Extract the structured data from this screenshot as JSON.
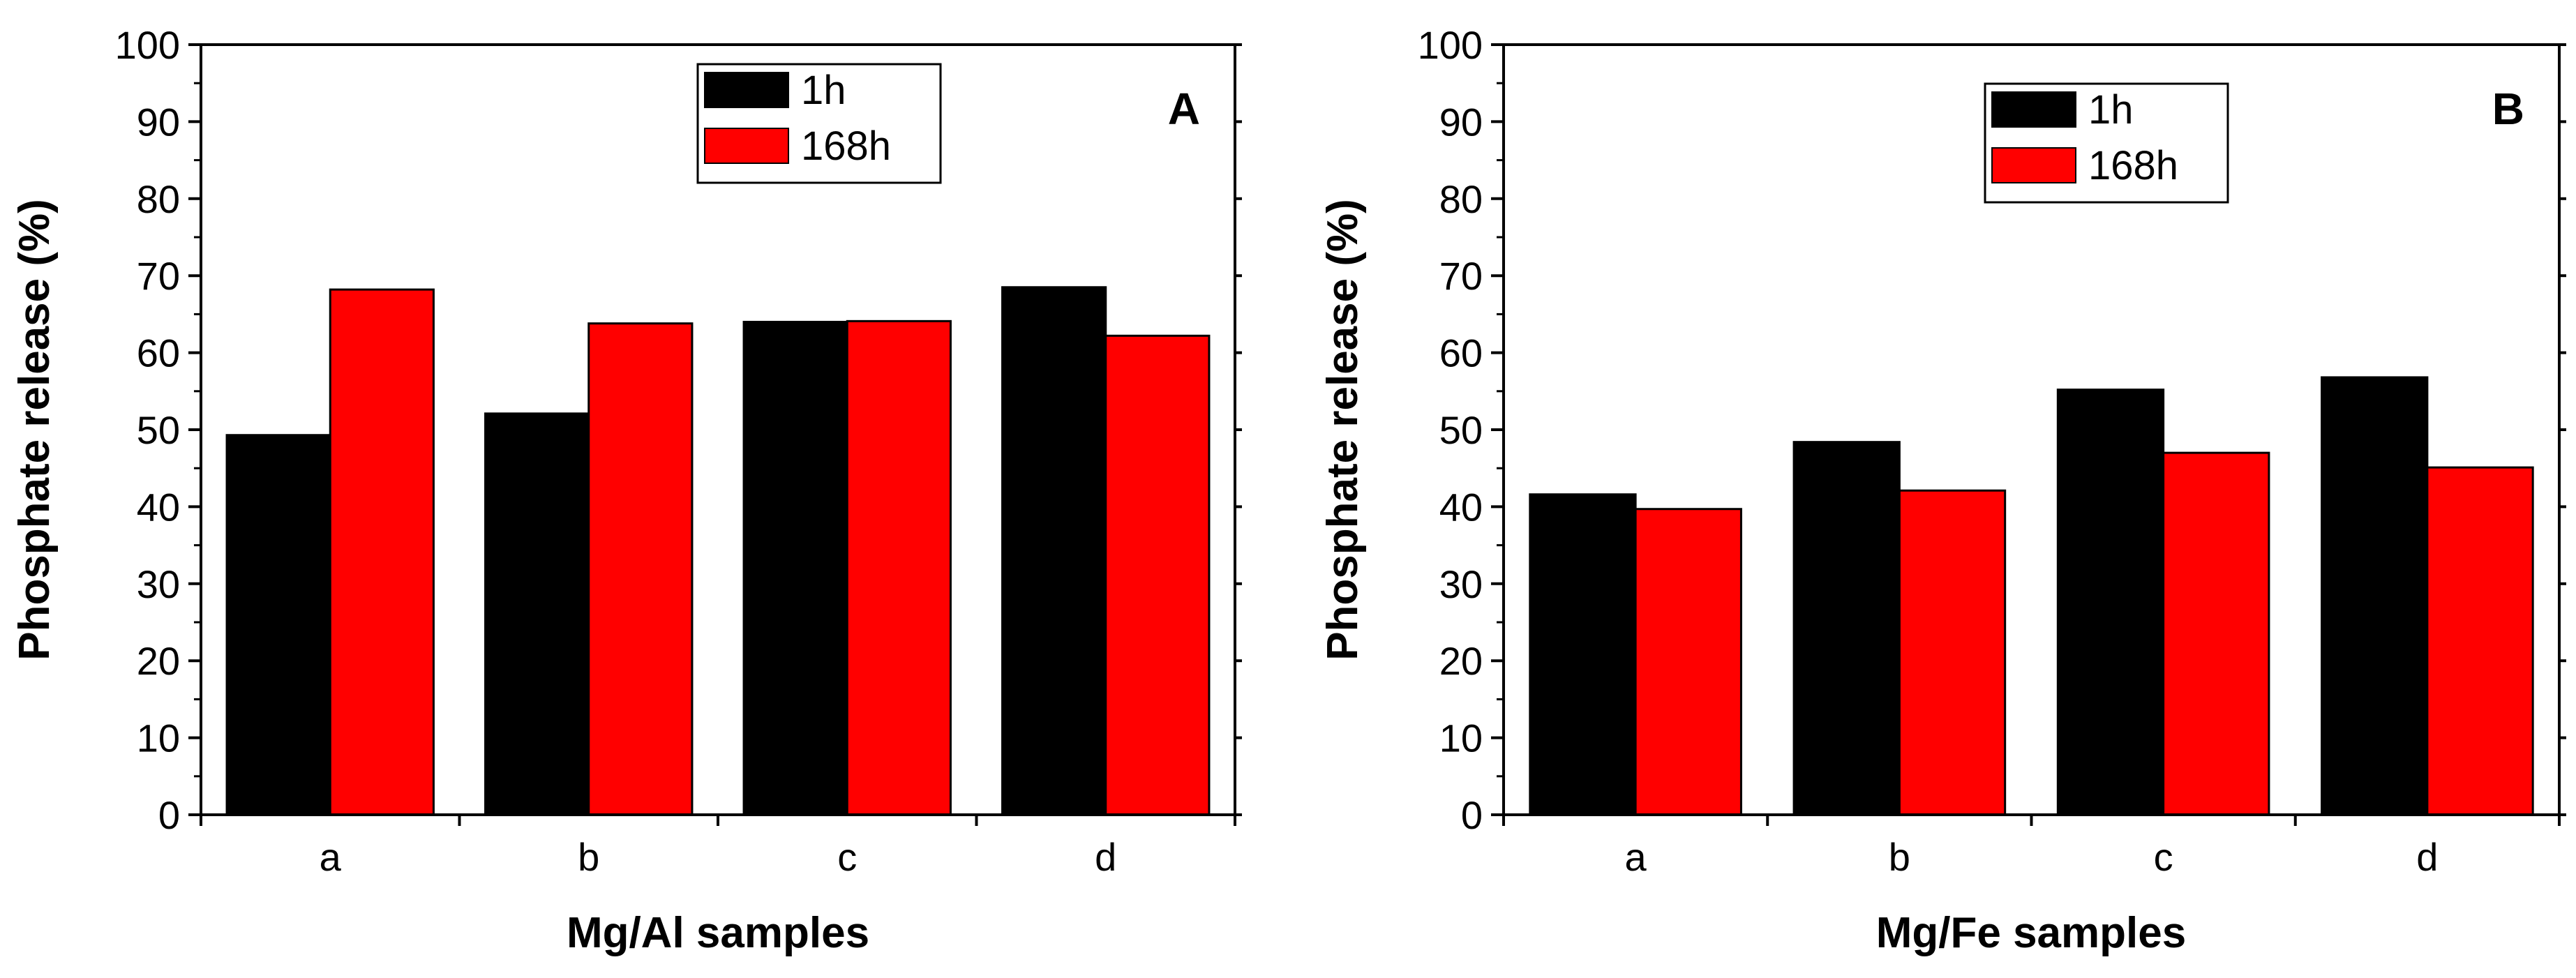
{
  "chart_data": [
    {
      "type": "bar",
      "panel_label": "A",
      "xlabel": "Mg/Al samples",
      "ylabel": "Phosphate release (%)",
      "categories": [
        "a",
        "b",
        "c",
        "d"
      ],
      "ylim": [
        0,
        100
      ],
      "yticks": [
        0,
        10,
        20,
        30,
        40,
        50,
        60,
        70,
        80,
        90,
        100
      ],
      "legend_position": "top-center",
      "series": [
        {
          "name": "1h",
          "color": "#000000",
          "values": [
            49.3,
            52.1,
            64.0,
            68.5
          ]
        },
        {
          "name": "168h",
          "color": "#ff0000",
          "values": [
            68.2,
            63.8,
            64.1,
            62.2
          ]
        }
      ]
    },
    {
      "type": "bar",
      "panel_label": "B",
      "xlabel": "Mg/Fe samples",
      "ylabel": "Phosphate release (%)",
      "categories": [
        "a",
        "b",
        "c",
        "d"
      ],
      "ylim": [
        0,
        100
      ],
      "yticks": [
        0,
        10,
        20,
        30,
        40,
        50,
        60,
        70,
        80,
        90,
        100
      ],
      "legend_position": "top-center",
      "series": [
        {
          "name": "1h",
          "color": "#000000",
          "values": [
            41.6,
            48.4,
            55.2,
            56.8
          ]
        },
        {
          "name": "168h",
          "color": "#ff0000",
          "values": [
            39.7,
            42.1,
            47.0,
            45.1
          ]
        }
      ]
    }
  ]
}
